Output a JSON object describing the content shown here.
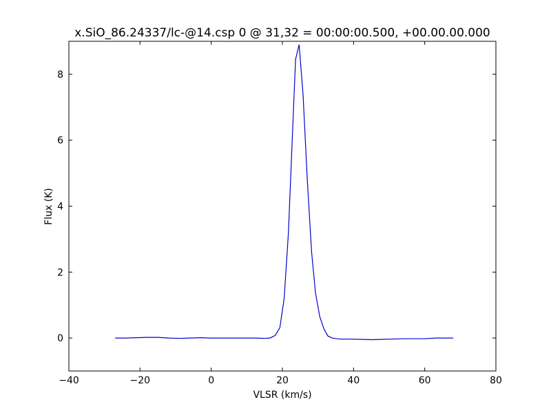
{
  "chart_data": {
    "type": "line",
    "title": "x.SiO_86.24337/lc-@14.csp 0 @ 31,32 = 00:00:00.500, +00.00.00.000",
    "xlabel": "VLSR (km/s)",
    "ylabel": "Flux (K)",
    "xlim": [
      -40,
      80
    ],
    "ylim": [
      -1,
      9
    ],
    "xticks": [
      -40,
      -20,
      0,
      20,
      40,
      60,
      80
    ],
    "yticks": [
      0,
      2,
      4,
      6,
      8
    ],
    "xtick_labels": [
      "−40",
      "−20",
      "0",
      "20",
      "40",
      "60",
      "80"
    ],
    "ytick_labels": [
      "0",
      "2",
      "4",
      "6",
      "8"
    ],
    "grid": false,
    "line_color": "#0000cc",
    "series": [
      {
        "x": [
          -27,
          -24,
          -21,
          -18,
          -15,
          -12,
          -9,
          -6,
          -3,
          0,
          3,
          6,
          9,
          12,
          15,
          16.5,
          18,
          19.3,
          20.5,
          21.7,
          22.8,
          23.7,
          24.7,
          25.8,
          27,
          28.2,
          29.3,
          30.5,
          31.7,
          32.8,
          34,
          35.2,
          36.3,
          37.5,
          39,
          42,
          45,
          48,
          51,
          54,
          57,
          60,
          63,
          66,
          68
        ],
        "y": [
          0.0,
          0.0,
          0.01,
          0.02,
          0.02,
          0.0,
          -0.01,
          0.0,
          0.01,
          0.0,
          0.0,
          0.0,
          0.0,
          0.0,
          -0.01,
          0.0,
          0.08,
          0.32,
          1.2,
          3.2,
          6.1,
          8.45,
          8.9,
          7.4,
          4.8,
          2.62,
          1.37,
          0.65,
          0.27,
          0.06,
          0.0,
          -0.02,
          -0.03,
          -0.03,
          -0.03,
          -0.04,
          -0.05,
          -0.04,
          -0.03,
          -0.02,
          -0.02,
          -0.02,
          0.0,
          0.0,
          0.0
        ]
      }
    ]
  }
}
